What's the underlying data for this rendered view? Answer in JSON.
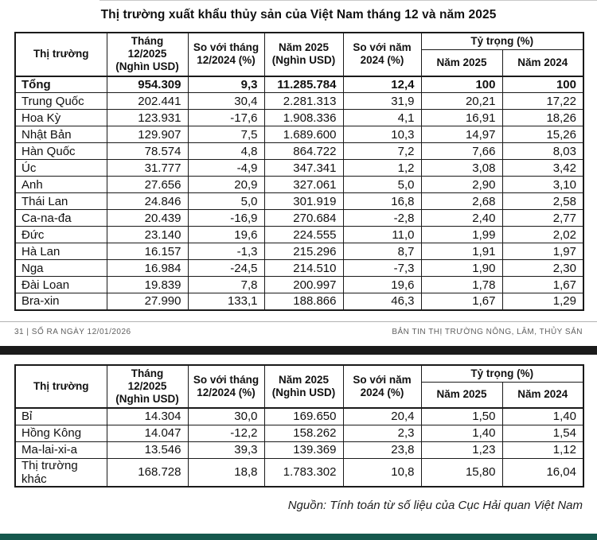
{
  "page": {
    "title": "Thị trường xuất khẩu thủy sản của Việt Nam tháng 12 và năm 2025",
    "footer": {
      "left": "31 |  SỐ RA NGÀY 12/01/2026",
      "right": "BẢN TIN THỊ TRƯỜNG NÔNG, LÂM, THỦY SẢN"
    },
    "source_note": "Nguồn: Tính toán từ số liệu của Cục Hải quan Việt Nam"
  },
  "table_header": {
    "market": "Thị trường",
    "month_value": "Tháng\n12/2025\n(Nghìn USD)",
    "vs_month": "So với tháng\n12/2024 (%)",
    "year_value": "Năm 2025\n(Nghìn USD)",
    "vs_year": "So với năm\n2024 (%)",
    "share_group": "Tỷ trọng (%)",
    "share_2025": "Năm 2025",
    "share_2024": "Năm 2024"
  },
  "table1": {
    "rows": [
      {
        "market": "Tổng",
        "month": "954.309",
        "vs_month": "9,3",
        "year": "11.285.784",
        "vs_year": "12,4",
        "share_2025": "100",
        "share_2024": "100",
        "bold": true
      },
      {
        "market": "Trung Quốc",
        "month": "202.441",
        "vs_month": "30,4",
        "year": "2.281.313",
        "vs_year": "31,9",
        "share_2025": "20,21",
        "share_2024": "17,22",
        "bold": false
      },
      {
        "market": "Hoa Kỳ",
        "month": "123.931",
        "vs_month": "-17,6",
        "year": "1.908.336",
        "vs_year": "4,1",
        "share_2025": "16,91",
        "share_2024": "18,26",
        "bold": false
      },
      {
        "market": "Nhật Bản",
        "month": "129.907",
        "vs_month": "7,5",
        "year": "1.689.600",
        "vs_year": "10,3",
        "share_2025": "14,97",
        "share_2024": "15,26",
        "bold": false
      },
      {
        "market": "Hàn Quốc",
        "month": "78.574",
        "vs_month": "4,8",
        "year": "864.722",
        "vs_year": "7,2",
        "share_2025": "7,66",
        "share_2024": "8,03",
        "bold": false
      },
      {
        "market": "Úc",
        "month": "31.777",
        "vs_month": "-4,9",
        "year": "347.341",
        "vs_year": "1,2",
        "share_2025": "3,08",
        "share_2024": "3,42",
        "bold": false
      },
      {
        "market": "Anh",
        "month": "27.656",
        "vs_month": "20,9",
        "year": "327.061",
        "vs_year": "5,0",
        "share_2025": "2,90",
        "share_2024": "3,10",
        "bold": false
      },
      {
        "market": "Thái Lan",
        "month": "24.846",
        "vs_month": "5,0",
        "year": "301.919",
        "vs_year": "16,8",
        "share_2025": "2,68",
        "share_2024": "2,58",
        "bold": false
      },
      {
        "market": "Ca-na-đa",
        "month": "20.439",
        "vs_month": "-16,9",
        "year": "270.684",
        "vs_year": "-2,8",
        "share_2025": "2,40",
        "share_2024": "2,77",
        "bold": false
      },
      {
        "market": "Đức",
        "month": "23.140",
        "vs_month": "19,6",
        "year": "224.555",
        "vs_year": "11,0",
        "share_2025": "1,99",
        "share_2024": "2,02",
        "bold": false
      },
      {
        "market": "Hà Lan",
        "month": "16.157",
        "vs_month": "-1,3",
        "year": "215.296",
        "vs_year": "8,7",
        "share_2025": "1,91",
        "share_2024": "1,97",
        "bold": false
      },
      {
        "market": "Nga",
        "month": "16.984",
        "vs_month": "-24,5",
        "year": "214.510",
        "vs_year": "-7,3",
        "share_2025": "1,90",
        "share_2024": "2,30",
        "bold": false
      },
      {
        "market": "Đài Loan",
        "month": "19.839",
        "vs_month": "7,8",
        "year": "200.997",
        "vs_year": "19,6",
        "share_2025": "1,78",
        "share_2024": "1,67",
        "bold": false
      },
      {
        "market": "Bra-xin",
        "month": "27.990",
        "vs_month": "133,1",
        "year": "188.866",
        "vs_year": "46,3",
        "share_2025": "1,67",
        "share_2024": "1,29",
        "bold": false
      }
    ]
  },
  "table2": {
    "rows": [
      {
        "market": "Bỉ",
        "month": "14.304",
        "vs_month": "30,0",
        "year": "169.650",
        "vs_year": "20,4",
        "share_2025": "1,50",
        "share_2024": "1,40",
        "bold": false
      },
      {
        "market": "Hồng Kông",
        "month": "14.047",
        "vs_month": "-12,2",
        "year": "158.262",
        "vs_year": "2,3",
        "share_2025": "1,40",
        "share_2024": "1,54",
        "bold": false
      },
      {
        "market": "Ma-lai-xi-a",
        "month": "13.546",
        "vs_month": "39,3",
        "year": "139.369",
        "vs_year": "23,8",
        "share_2025": "1,23",
        "share_2024": "1,12",
        "bold": false
      },
      {
        "market": "Thị trường khác",
        "month": "168.728",
        "vs_month": "18,8",
        "year": "1.783.302",
        "vs_year": "10,8",
        "share_2025": "15,80",
        "share_2024": "16,04",
        "bold": false
      }
    ]
  },
  "colors": {
    "separator_bar": "#1b1b1b",
    "accent_bar": "#15584d",
    "border": "#1a1a1a"
  }
}
